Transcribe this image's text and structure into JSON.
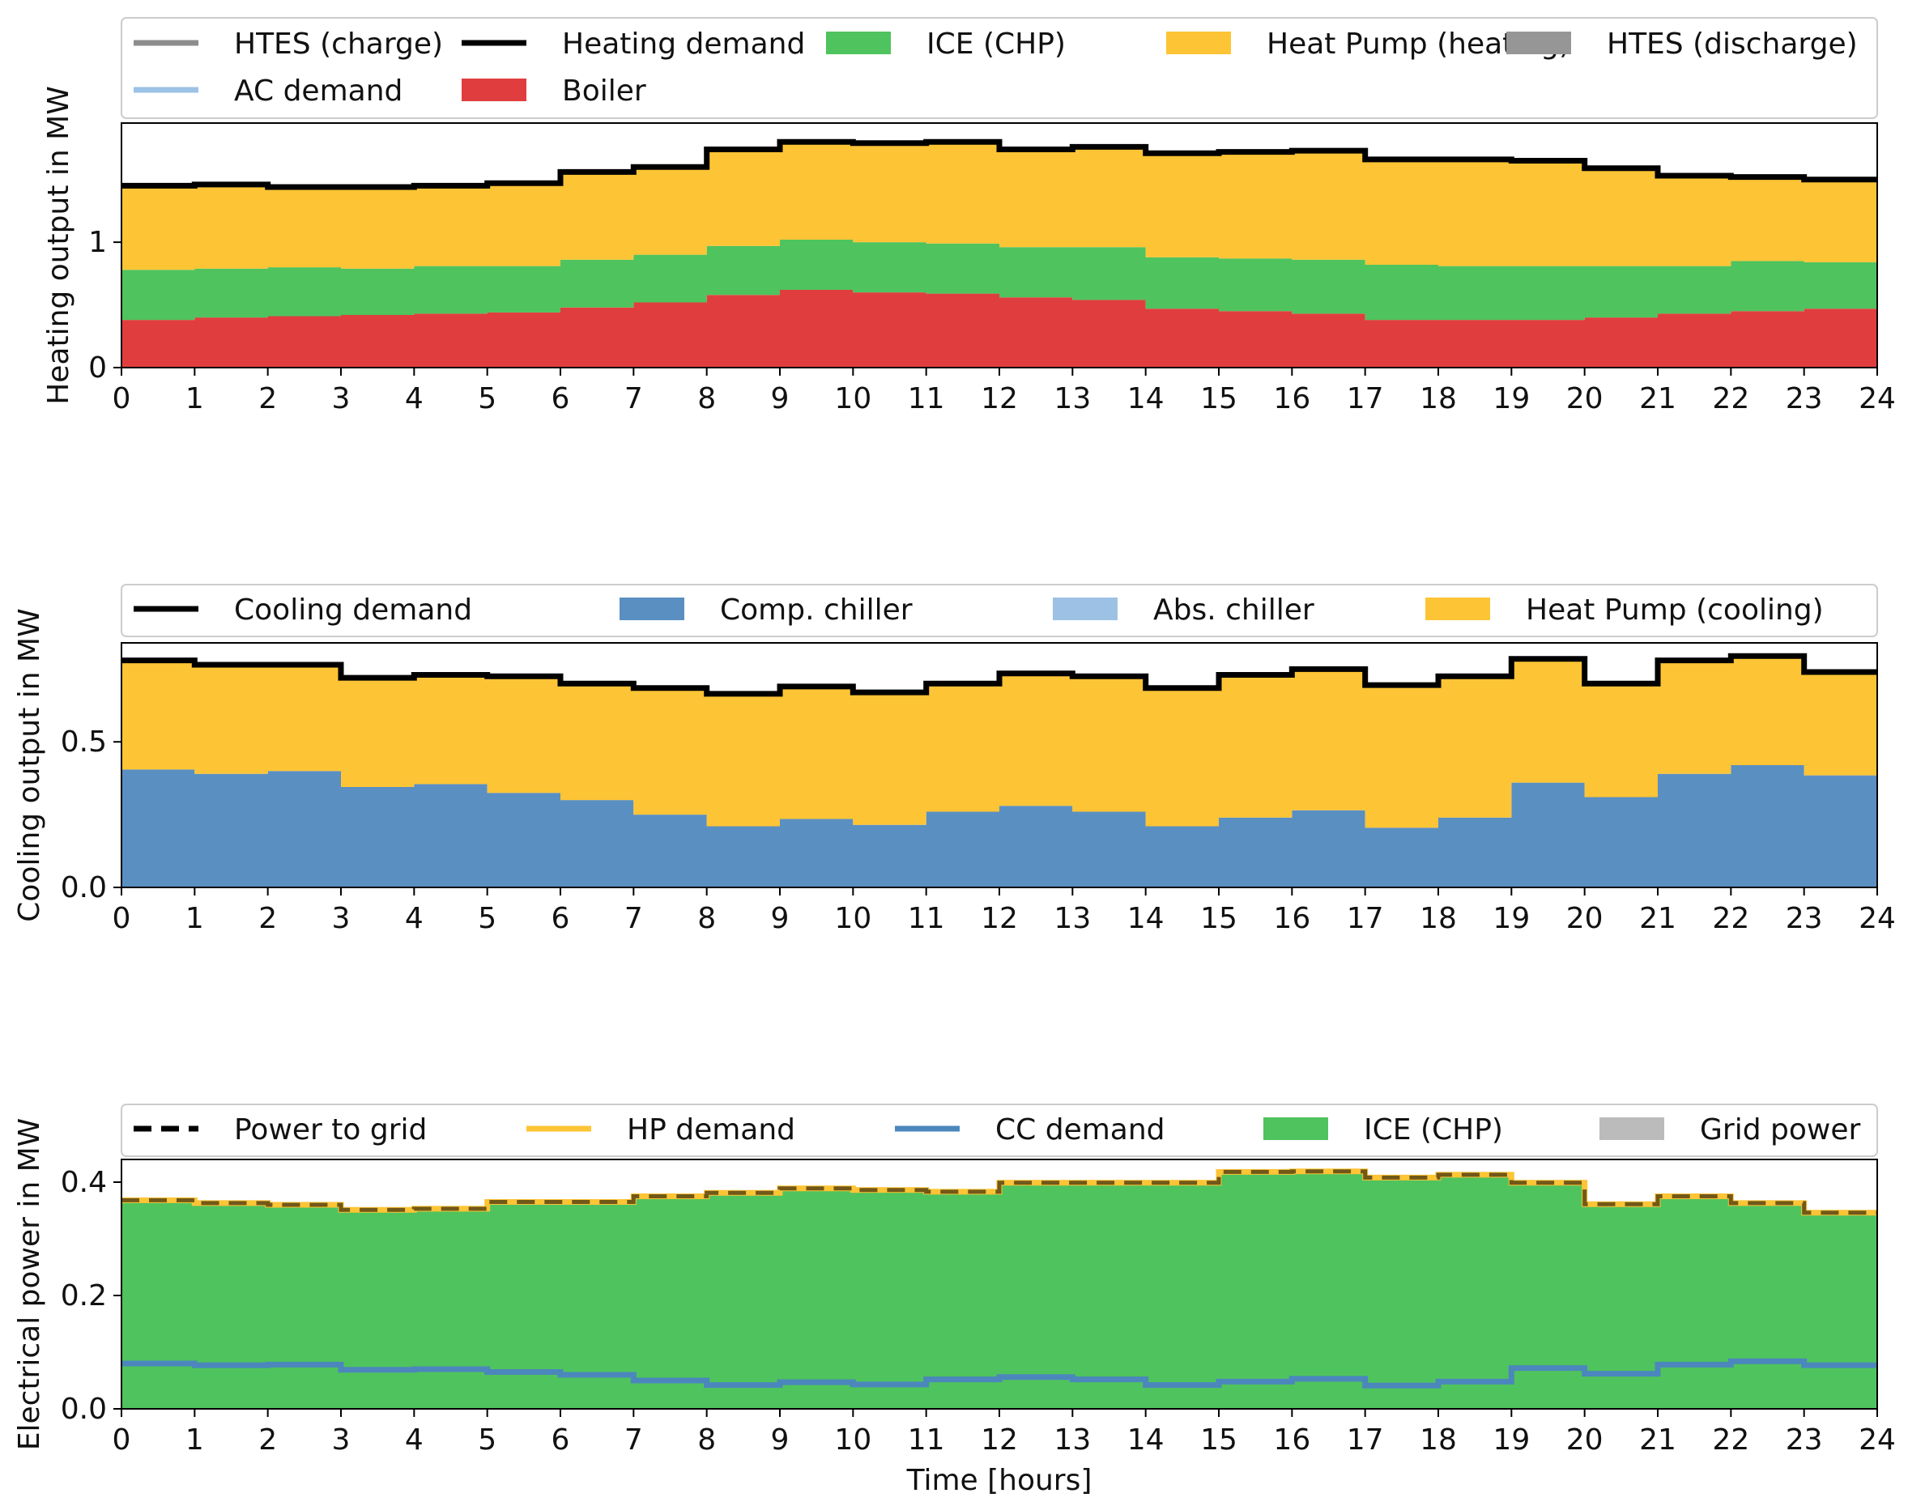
{
  "colors": {
    "htes_charge": "#8c8c8c",
    "demand": "#000000",
    "ice": "#4fc35d",
    "heat_pump": "#fdc435",
    "htes_discharge": "#969696",
    "ac_demand": "#9cc2e6",
    "boiler": "#e03e3e",
    "comp_chiller": "#5a8fc2",
    "abs_chiller": "#9dc1e4",
    "hp_demand": "#fdc435",
    "cc_demand": "#4b87bd",
    "grid_power": "#bbbbbb",
    "power_to_grid": "#000000"
  },
  "chart_data": [
    {
      "type": "area",
      "step": "post",
      "stacked": true,
      "xlabel": "",
      "ylabel": "Heating output in MW",
      "xlim": [
        0,
        24
      ],
      "ylim": [
        0,
        1.95
      ],
      "xticks": [
        "0",
        "1",
        "2",
        "3",
        "4",
        "5",
        "6",
        "7",
        "8",
        "9",
        "10",
        "11",
        "12",
        "13",
        "14",
        "15",
        "16",
        "17",
        "18",
        "19",
        "20",
        "21",
        "22",
        "23",
        "24"
      ],
      "yticks": [
        {
          "value": 0,
          "label": "0"
        },
        {
          "value": 1,
          "label": "1"
        }
      ],
      "legend": {
        "placement": "top",
        "entries": [
          {
            "label": "HTES (charge)",
            "kind": "line",
            "color": "#8c8c8c"
          },
          {
            "label": "Heating demand",
            "kind": "line",
            "color": "#000000"
          },
          {
            "label": "ICE (CHP)",
            "kind": "patch",
            "color": "#4fc35d"
          },
          {
            "label": "Heat Pump (heating)",
            "kind": "patch",
            "color": "#fdc435"
          },
          {
            "label": "HTES (discharge)",
            "kind": "patch",
            "color": "#969696"
          },
          {
            "label": "AC demand",
            "kind": "line",
            "color": "#9cc2e6"
          },
          {
            "label": "Boiler",
            "kind": "patch",
            "color": "#e03e3e"
          }
        ]
      },
      "x": [
        0,
        1,
        2,
        3,
        4,
        5,
        6,
        7,
        8,
        9,
        10,
        11,
        12,
        13,
        14,
        15,
        16,
        17,
        18,
        19,
        20,
        21,
        22,
        23
      ],
      "stack": [
        {
          "name": "Boiler",
          "color": "#e03e3e",
          "values": [
            0.38,
            0.4,
            0.41,
            0.42,
            0.43,
            0.44,
            0.48,
            0.52,
            0.58,
            0.62,
            0.6,
            0.59,
            0.56,
            0.54,
            0.47,
            0.45,
            0.43,
            0.38,
            0.38,
            0.38,
            0.4,
            0.43,
            0.45,
            0.47
          ]
        },
        {
          "name": "ICE (CHP)",
          "color": "#4fc35d",
          "values": [
            0.4,
            0.39,
            0.39,
            0.37,
            0.38,
            0.37,
            0.38,
            0.38,
            0.39,
            0.4,
            0.4,
            0.4,
            0.4,
            0.42,
            0.41,
            0.42,
            0.43,
            0.44,
            0.43,
            0.43,
            0.41,
            0.38,
            0.4,
            0.37
          ]
        },
        {
          "name": "Heat Pump (heating)",
          "color": "#fdc435",
          "values": [
            0.67,
            0.67,
            0.64,
            0.65,
            0.64,
            0.66,
            0.7,
            0.7,
            0.77,
            0.78,
            0.79,
            0.81,
            0.78,
            0.8,
            0.83,
            0.85,
            0.87,
            0.84,
            0.85,
            0.84,
            0.78,
            0.72,
            0.67,
            0.66
          ]
        }
      ],
      "lines": [
        {
          "name": "Heating demand",
          "color": "#000000",
          "dashed": false,
          "values": [
            1.45,
            1.46,
            1.44,
            1.44,
            1.45,
            1.47,
            1.56,
            1.6,
            1.74,
            1.8,
            1.79,
            1.8,
            1.74,
            1.76,
            1.71,
            1.72,
            1.73,
            1.66,
            1.66,
            1.65,
            1.59,
            1.53,
            1.52,
            1.5
          ]
        }
      ]
    },
    {
      "type": "area",
      "step": "post",
      "stacked": true,
      "xlabel": "",
      "ylabel": "Cooling output in MW",
      "xlim": [
        0,
        24
      ],
      "ylim": [
        0,
        0.84
      ],
      "xticks": [
        "0",
        "1",
        "2",
        "3",
        "4",
        "5",
        "6",
        "7",
        "8",
        "9",
        "10",
        "11",
        "12",
        "13",
        "14",
        "15",
        "16",
        "17",
        "18",
        "19",
        "20",
        "21",
        "22",
        "23",
        "24"
      ],
      "yticks": [
        {
          "value": 0,
          "label": "0.0"
        },
        {
          "value": 0.5,
          "label": "0.5"
        }
      ],
      "legend": {
        "placement": "top",
        "entries": [
          {
            "label": "Cooling demand",
            "kind": "line",
            "color": "#000000"
          },
          {
            "label": "Comp. chiller",
            "kind": "patch",
            "color": "#5a8fc2"
          },
          {
            "label": "Abs. chiller",
            "kind": "patch",
            "color": "#9dc1e4"
          },
          {
            "label": "Heat Pump (cooling)",
            "kind": "patch",
            "color": "#fdc435"
          }
        ]
      },
      "x": [
        0,
        1,
        2,
        3,
        4,
        5,
        6,
        7,
        8,
        9,
        10,
        11,
        12,
        13,
        14,
        15,
        16,
        17,
        18,
        19,
        20,
        21,
        22,
        23
      ],
      "stack": [
        {
          "name": "Comp. chiller",
          "color": "#5a8fc2",
          "values": [
            0.405,
            0.39,
            0.4,
            0.345,
            0.355,
            0.325,
            0.3,
            0.25,
            0.21,
            0.235,
            0.215,
            0.26,
            0.28,
            0.26,
            0.21,
            0.24,
            0.265,
            0.205,
            0.24,
            0.36,
            0.31,
            0.39,
            0.42,
            0.385
          ]
        },
        {
          "name": "Heat Pump (cooling)",
          "color": "#fdc435",
          "values": [
            0.375,
            0.375,
            0.365,
            0.375,
            0.375,
            0.4,
            0.4,
            0.435,
            0.455,
            0.455,
            0.455,
            0.44,
            0.455,
            0.465,
            0.475,
            0.49,
            0.485,
            0.49,
            0.485,
            0.425,
            0.39,
            0.39,
            0.375,
            0.355
          ]
        }
      ],
      "lines": [
        {
          "name": "Cooling demand",
          "color": "#000000",
          "dashed": false,
          "values": [
            0.78,
            0.765,
            0.765,
            0.72,
            0.73,
            0.725,
            0.7,
            0.685,
            0.665,
            0.69,
            0.67,
            0.7,
            0.735,
            0.725,
            0.685,
            0.73,
            0.75,
            0.695,
            0.725,
            0.785,
            0.7,
            0.78,
            0.795,
            0.74
          ]
        }
      ]
    },
    {
      "type": "area",
      "step": "post",
      "stacked": true,
      "xlabel": "Time [hours]",
      "ylabel": "Electrical power in MW",
      "xlim": [
        0,
        24
      ],
      "ylim": [
        0,
        0.44
      ],
      "xticks": [
        "0",
        "1",
        "2",
        "3",
        "4",
        "5",
        "6",
        "7",
        "8",
        "9",
        "10",
        "11",
        "12",
        "13",
        "14",
        "15",
        "16",
        "17",
        "18",
        "19",
        "20",
        "21",
        "22",
        "23",
        "24"
      ],
      "yticks": [
        {
          "value": 0,
          "label": "0.0"
        },
        {
          "value": 0.2,
          "label": "0.2"
        },
        {
          "value": 0.4,
          "label": "0.4"
        }
      ],
      "legend": {
        "placement": "top",
        "entries": [
          {
            "label": "Power to grid",
            "kind": "dashed",
            "color": "#000000"
          },
          {
            "label": "HP demand",
            "kind": "line",
            "color": "#fdc435"
          },
          {
            "label": "CC demand",
            "kind": "line",
            "color": "#4b87bd"
          },
          {
            "label": "ICE (CHP)",
            "kind": "patch",
            "color": "#4fc35d"
          },
          {
            "label": "Grid power",
            "kind": "patch",
            "color": "#bbbbbb"
          }
        ]
      },
      "x": [
        0,
        1,
        2,
        3,
        4,
        5,
        6,
        7,
        8,
        9,
        10,
        11,
        12,
        13,
        14,
        15,
        16,
        17,
        18,
        19,
        20,
        21,
        22,
        23
      ],
      "stack": [
        {
          "name": "ICE (CHP)",
          "color": "#4fc35d",
          "values": [
            0.365,
            0.36,
            0.358,
            0.348,
            0.35,
            0.362,
            0.362,
            0.372,
            0.378,
            0.386,
            0.383,
            0.38,
            0.396,
            0.396,
            0.396,
            0.415,
            0.416,
            0.405,
            0.41,
            0.396,
            0.358,
            0.372,
            0.36,
            0.343
          ]
        }
      ],
      "lines": [
        {
          "name": "HP demand",
          "color": "#fdc435",
          "dashed": false,
          "values": [
            0.368,
            0.363,
            0.36,
            0.351,
            0.353,
            0.365,
            0.365,
            0.375,
            0.381,
            0.389,
            0.386,
            0.383,
            0.399,
            0.399,
            0.399,
            0.418,
            0.419,
            0.408,
            0.413,
            0.399,
            0.361,
            0.375,
            0.363,
            0.346
          ]
        },
        {
          "name": "Power to grid",
          "color": "#000000",
          "dashed": true,
          "values": [
            0.368,
            0.363,
            0.36,
            0.351,
            0.353,
            0.365,
            0.365,
            0.375,
            0.381,
            0.389,
            0.386,
            0.383,
            0.399,
            0.399,
            0.399,
            0.418,
            0.419,
            0.408,
            0.413,
            0.399,
            0.361,
            0.375,
            0.363,
            0.346
          ]
        },
        {
          "name": "CC demand",
          "color": "#4b87bd",
          "dashed": false,
          "values": [
            0.08,
            0.077,
            0.078,
            0.069,
            0.07,
            0.065,
            0.06,
            0.05,
            0.042,
            0.047,
            0.043,
            0.052,
            0.056,
            0.052,
            0.042,
            0.048,
            0.053,
            0.041,
            0.048,
            0.072,
            0.062,
            0.078,
            0.084,
            0.077
          ]
        }
      ]
    }
  ]
}
